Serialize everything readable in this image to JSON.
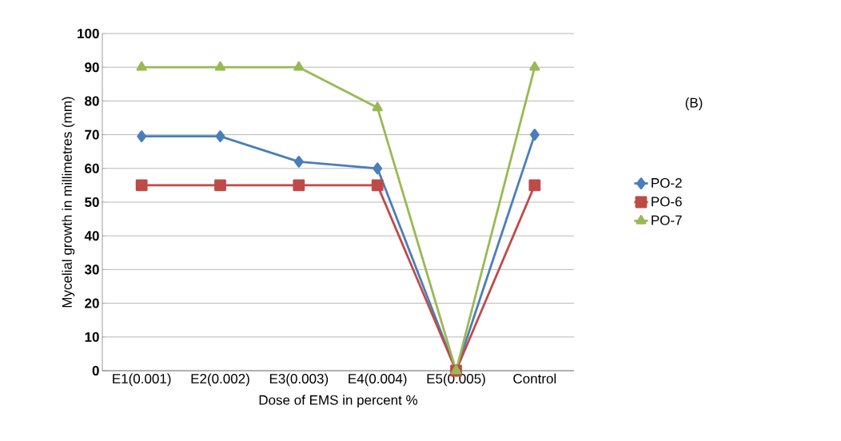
{
  "chart_data": {
    "type": "line",
    "xlabel": "Dose of EMS in percent %",
    "ylabel": "Mycelial growth in millimetres (mm)",
    "categories": [
      "E1(0.001)",
      "E2(0.002)",
      "E3(0.003)",
      "E4(0.004)",
      "E5(0.005)",
      "Control"
    ],
    "series": [
      {
        "name": "PO-2",
        "color": "#4a7ebb",
        "marker": "diamond",
        "values": [
          69.5,
          69.5,
          62,
          60,
          0,
          70
        ]
      },
      {
        "name": "PO-6",
        "color": "#be4b48",
        "marker": "square",
        "values": [
          55,
          55,
          55,
          55,
          0,
          55
        ]
      },
      {
        "name": "PO-7",
        "color": "#98b954",
        "marker": "triangle",
        "values": [
          90,
          90,
          90,
          78,
          0,
          90
        ]
      }
    ],
    "ylim": [
      0,
      100
    ],
    "yticks": [
      0,
      10,
      20,
      30,
      40,
      50,
      60,
      70,
      80,
      90,
      100
    ],
    "grid": "y",
    "legend": "right",
    "line_style": "solid",
    "annotations": [
      "(B)"
    ]
  }
}
